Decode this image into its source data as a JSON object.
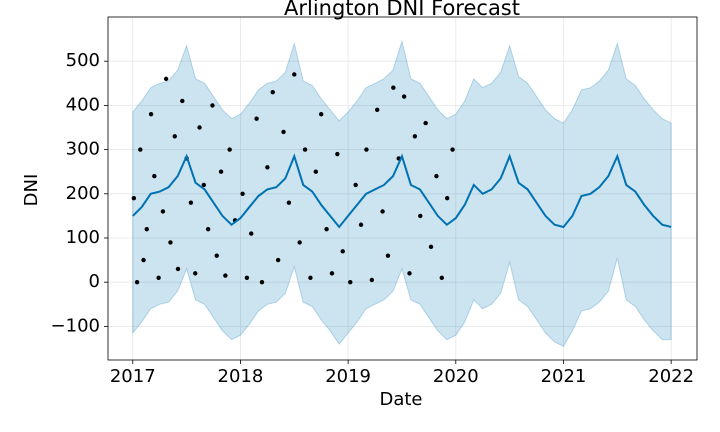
{
  "chart_data": {
    "type": "forecast",
    "title": "Arlington DNI Forecast",
    "x_label": "Date",
    "y_label": "DNI",
    "xlim": [
      2016.77,
      2022.24
    ],
    "xticks": [
      2017,
      2018,
      2019,
      2020,
      2021,
      2022
    ],
    "ylim": [
      -176,
      600
    ],
    "yticks": [
      {
        "value": -100,
        "label": "−100"
      },
      0,
      100,
      200,
      300,
      400,
      500
    ],
    "grid": true,
    "line_color": "#0072b2",
    "band_color": "#0072b2",
    "point_color": "#000000",
    "x": [
      2017,
      2017.083,
      2017.167,
      2017.25,
      2017.333,
      2017.417,
      2017.5,
      2017.583,
      2017.667,
      2017.75,
      2017.833,
      2017.917,
      2018,
      2018.083,
      2018.167,
      2018.25,
      2018.333,
      2018.417,
      2018.5,
      2018.583,
      2018.667,
      2018.75,
      2018.833,
      2018.917,
      2019,
      2019.083,
      2019.167,
      2019.25,
      2019.333,
      2019.417,
      2019.5,
      2019.583,
      2019.667,
      2019.75,
      2019.833,
      2019.917,
      2020,
      2020.083,
      2020.167,
      2020.25,
      2020.333,
      2020.417,
      2020.5,
      2020.583,
      2020.667,
      2020.75,
      2020.833,
      2020.917,
      2021,
      2021.083,
      2021.167,
      2021.25,
      2021.333,
      2021.417,
      2021.5,
      2021.583,
      2021.667,
      2021.75,
      2021.833,
      2021.917,
      2022
    ],
    "yhat": [
      150,
      170,
      200,
      205,
      215,
      240,
      285,
      225,
      210,
      180,
      150,
      130,
      145,
      170,
      195,
      210,
      215,
      235,
      285,
      220,
      205,
      175,
      150,
      125,
      150,
      175,
      200,
      210,
      220,
      240,
      285,
      220,
      210,
      180,
      150,
      130,
      145,
      175,
      220,
      200,
      210,
      235,
      285,
      225,
      210,
      180,
      150,
      130,
      125,
      150,
      195,
      200,
      215,
      240,
      285,
      220,
      205,
      175,
      150,
      130,
      125
    ],
    "yhat_upper": [
      385,
      410,
      440,
      450,
      455,
      480,
      535,
      460,
      450,
      420,
      390,
      370,
      380,
      405,
      435,
      450,
      455,
      475,
      540,
      455,
      445,
      415,
      390,
      365,
      385,
      410,
      440,
      450,
      460,
      480,
      545,
      460,
      450,
      420,
      390,
      370,
      380,
      410,
      460,
      440,
      450,
      475,
      535,
      465,
      450,
      420,
      390,
      370,
      360,
      390,
      435,
      440,
      455,
      480,
      540,
      460,
      445,
      415,
      390,
      370,
      360
    ],
    "yhat_lower": [
      -115,
      -90,
      -60,
      -50,
      -45,
      -20,
      30,
      -40,
      -50,
      -80,
      -110,
      -130,
      -120,
      -95,
      -65,
      -50,
      -45,
      -25,
      35,
      -45,
      -55,
      -85,
      -110,
      -140,
      -115,
      -90,
      -60,
      -50,
      -40,
      -20,
      30,
      -40,
      -50,
      -80,
      -110,
      -130,
      -120,
      -90,
      -40,
      -60,
      -50,
      -25,
      45,
      -40,
      -55,
      -85,
      -115,
      -135,
      -145,
      -110,
      -65,
      -60,
      -45,
      -20,
      55,
      -40,
      -55,
      -85,
      -110,
      -130,
      -130
    ],
    "observed": {
      "x": [
        2017.01,
        2017.04,
        2017.07,
        2017.1,
        2017.13,
        2017.17,
        2017.2,
        2017.24,
        2017.28,
        2017.31,
        2017.35,
        2017.39,
        2017.42,
        2017.46,
        2017.5,
        2017.54,
        2017.58,
        2017.62,
        2017.66,
        2017.7,
        2017.74,
        2017.78,
        2017.82,
        2017.86,
        2017.9,
        2017.95,
        2018.02,
        2018.06,
        2018.1,
        2018.15,
        2018.2,
        2018.25,
        2018.3,
        2018.35,
        2018.4,
        2018.45,
        2018.5,
        2018.55,
        2018.6,
        2018.65,
        2018.7,
        2018.75,
        2018.8,
        2018.85,
        2018.9,
        2018.95,
        2019.02,
        2019.07,
        2019.12,
        2019.17,
        2019.22,
        2019.27,
        2019.32,
        2019.37,
        2019.42,
        2019.47,
        2019.52,
        2019.57,
        2019.62,
        2019.67,
        2019.72,
        2019.77,
        2019.82,
        2019.87,
        2019.92,
        2019.97
      ],
      "values": [
        190,
        0,
        300,
        50,
        120,
        380,
        240,
        10,
        160,
        460,
        90,
        330,
        30,
        410,
        280,
        180,
        20,
        350,
        220,
        120,
        400,
        60,
        250,
        15,
        300,
        140,
        200,
        10,
        110,
        370,
        0,
        260,
        430,
        50,
        340,
        180,
        470,
        90,
        300,
        10,
        250,
        380,
        120,
        20,
        290,
        70,
        0,
        220,
        130,
        300,
        5,
        390,
        160,
        60,
        440,
        280,
        420,
        20,
        330,
        150,
        360,
        80,
        240,
        10,
        190,
        300
      ]
    }
  }
}
